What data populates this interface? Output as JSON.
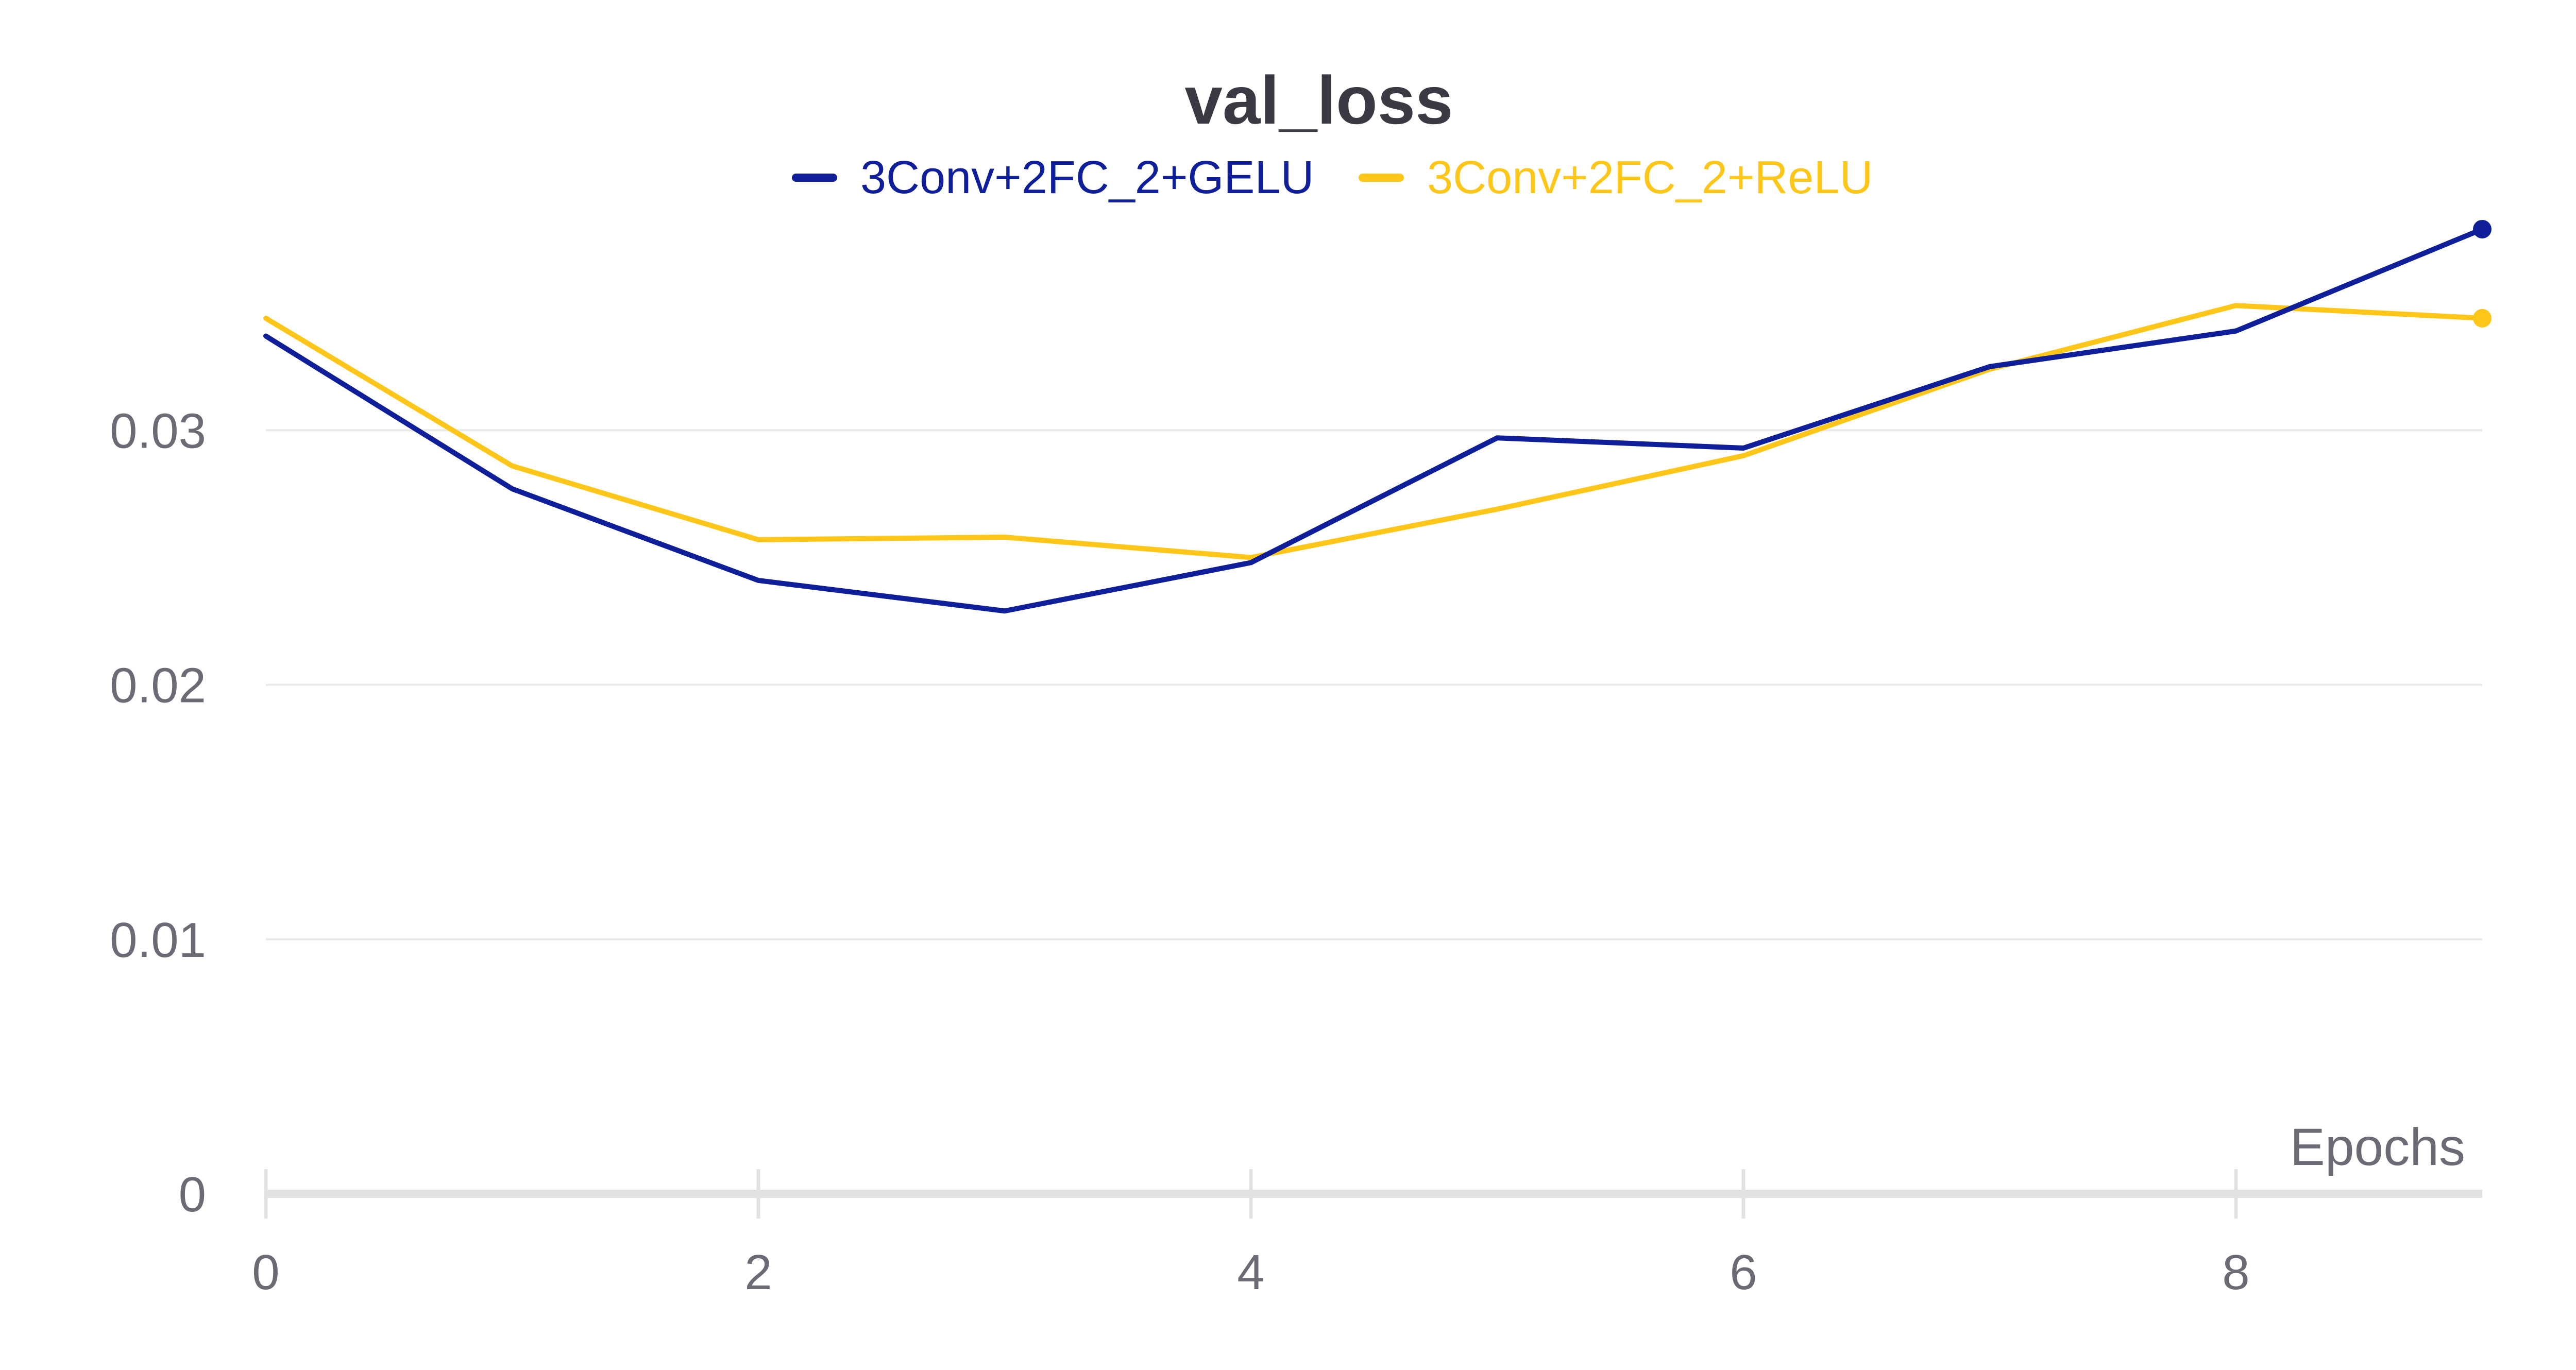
{
  "chart_data": {
    "type": "line",
    "title": "val_loss",
    "xlabel": "Epochs",
    "ylabel": "",
    "x": [
      0,
      1,
      2,
      3,
      4,
      5,
      6,
      7,
      8,
      9
    ],
    "xlim": [
      0,
      9
    ],
    "ylim": [
      0,
      0.038
    ],
    "x_ticks": [
      "0",
      "2",
      "4",
      "6",
      "8"
    ],
    "x_tick_values": [
      0,
      2,
      4,
      6,
      8
    ],
    "y_ticks": [
      "0",
      "0.01",
      "0.02",
      "0.03"
    ],
    "y_tick_values": [
      0,
      0.01,
      0.02,
      0.03
    ],
    "grid": true,
    "legend_position": "top-center",
    "series": [
      {
        "name": "3Conv+2FC_2+GELU",
        "color": "#0f1f9a",
        "values": [
          0.0337,
          0.0277,
          0.0241,
          0.0229,
          0.0248,
          0.0297,
          0.0293,
          0.0325,
          0.0339,
          0.0379
        ]
      },
      {
        "name": "3Conv+2FC_2+ReLU",
        "color": "#ffc61a",
        "values": [
          0.0344,
          0.0286,
          0.0257,
          0.0258,
          0.025,
          0.0269,
          0.029,
          0.0324,
          0.0349,
          0.0344
        ]
      }
    ]
  }
}
